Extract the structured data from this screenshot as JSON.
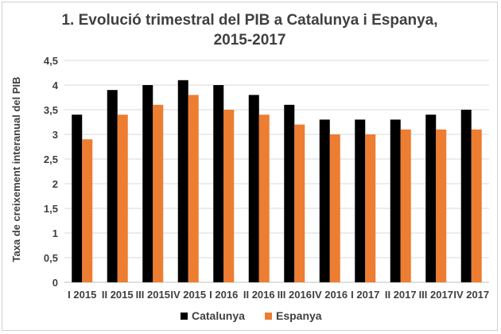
{
  "chart_data": {
    "type": "bar",
    "title_line1": "1. Evolució trimestral del PIB a Catalunya i Espanya,",
    "title_line2": "2015-2017",
    "ylabel": "Taxa de creixement interanual del PIB",
    "xlabel": "",
    "ylim": [
      0,
      4.5
    ],
    "yticks": [
      "0",
      "0,5",
      "1",
      "1,5",
      "2",
      "2,5",
      "3",
      "3,5",
      "4",
      "4,5"
    ],
    "ytick_values": [
      0,
      0.5,
      1,
      1.5,
      2,
      2.5,
      3,
      3.5,
      4,
      4.5
    ],
    "grid": true,
    "legend_position": "bottom",
    "categories": [
      "I 2015",
      "II 2015",
      "III 2015",
      "IV 2015",
      "I 2016",
      "II 2016",
      "III 2016",
      "IV 2016",
      "I 2017",
      "II 2017",
      "III 2017",
      "IV 2017"
    ],
    "series": [
      {
        "name": "Catalunya",
        "color": "#000000",
        "values": [
          3.4,
          3.9,
          4.0,
          4.1,
          4.0,
          3.8,
          3.6,
          3.3,
          3.3,
          3.3,
          3.4,
          3.5
        ]
      },
      {
        "name": "Espanya",
        "color": "#ed7d31",
        "values": [
          2.9,
          3.4,
          3.6,
          3.8,
          3.5,
          3.4,
          3.2,
          3.0,
          3.0,
          3.1,
          3.1,
          3.1
        ]
      }
    ]
  }
}
